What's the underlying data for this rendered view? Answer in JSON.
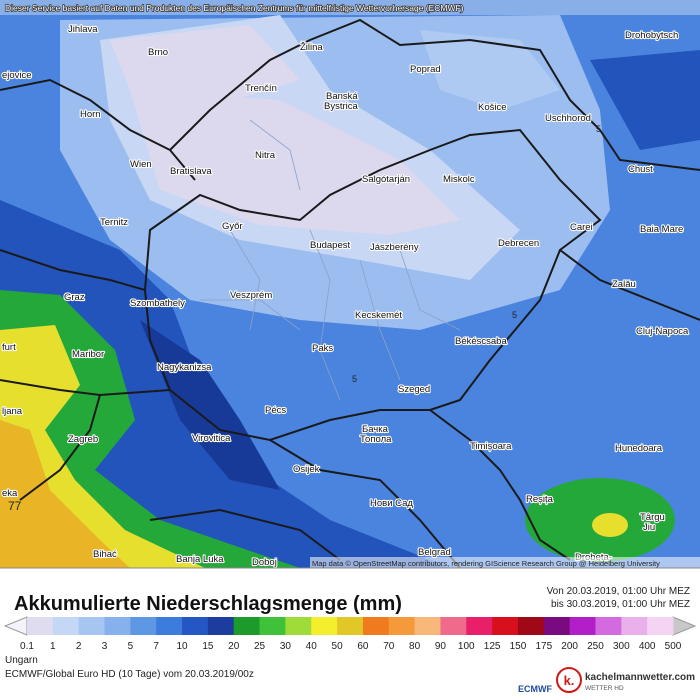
{
  "header": {
    "source": "Dieser Service basiert auf Daten und Produkten des Europäischen Zentrums für mittelfristige Wettervorhersage (ECMWF)"
  },
  "map": {
    "cities": [
      "Jihlava",
      "Brno",
      "Žilina",
      "Poprad",
      "Drohobytsch",
      "Trenčín",
      "Banská",
      "Bystrica",
      "Košice",
      "Uschhorod",
      "Horn",
      "Wien",
      "Bratislava",
      "Nitra",
      "Salgótarján",
      "Miskolc",
      "Chust",
      "Ternitz",
      "Győr",
      "Budapest",
      "Jászberény",
      "Debrecen",
      "Carei",
      "Baia Mare",
      "Szombathely",
      "Veszprém",
      "Zalău",
      "Graz",
      "Kecskemét",
      "Cluj-Napoca",
      "Békéscsaba",
      "Paks",
      "Maribor",
      "Nagykanizsa",
      "Szeged",
      "Pécs",
      "Zagreb",
      "Virovitica",
      "Бачка",
      "Топола",
      "Timișoara",
      "Hunedoara",
      "Osijek",
      "Нови Сад",
      "Reșița",
      "Târgu",
      "Jiu",
      "Belgrad",
      "Bihać",
      "Banja Luka",
      "Doboj",
      "Drobeta-",
      "furt",
      "ljana",
      "eka",
      "ejovice"
    ],
    "contour_labels": [
      "5",
      "5",
      "5",
      "77"
    ],
    "attribution": "Map data © OpenStreetMap contributors, rendering GIScience Research Group @ Heidelberg University"
  },
  "legend": {
    "title": "Akkumulierte Niederschlagsmenge (mm)",
    "valid_from": "Von 20.03.2019, 01:00 Uhr MEZ",
    "valid_to": "bis 30.03.2019, 01:00 Uhr MEZ",
    "values": [
      0.1,
      1,
      2,
      3,
      5,
      7,
      10,
      15,
      20,
      25,
      30,
      40,
      50,
      60,
      70,
      80,
      90,
      100,
      125,
      150,
      175,
      200,
      250,
      300,
      400,
      500
    ],
    "colors": [
      "#e0dcf0",
      "#c4d8f6",
      "#a6c5f1",
      "#86b1ec",
      "#5e98e4",
      "#3b7cdc",
      "#2457c4",
      "#1c3d9e",
      "#1d9a2c",
      "#3fc23a",
      "#9fdc3a",
      "#f4ef2c",
      "#e2c826",
      "#f07b1e",
      "#f59a3a",
      "#f7b87a",
      "#f06a8c",
      "#e8206a",
      "#d8101e",
      "#a00818",
      "#7a0a80",
      "#b21ec8",
      "#d46ae0",
      "#eab0ec",
      "#f4d4f2"
    ],
    "low_arrow_color": "#f4f2fa",
    "high_arrow_color": "#c8c8c8"
  },
  "footer": {
    "region": "Ungarn",
    "model": "ECMWF/Global Euro HD (10 Tage) vom 20.03.2019/00z",
    "ecmwf": "ECMWF",
    "logo_letter": "k.",
    "site": "kachelmannwetter.com",
    "brand": "WETTER HD"
  }
}
